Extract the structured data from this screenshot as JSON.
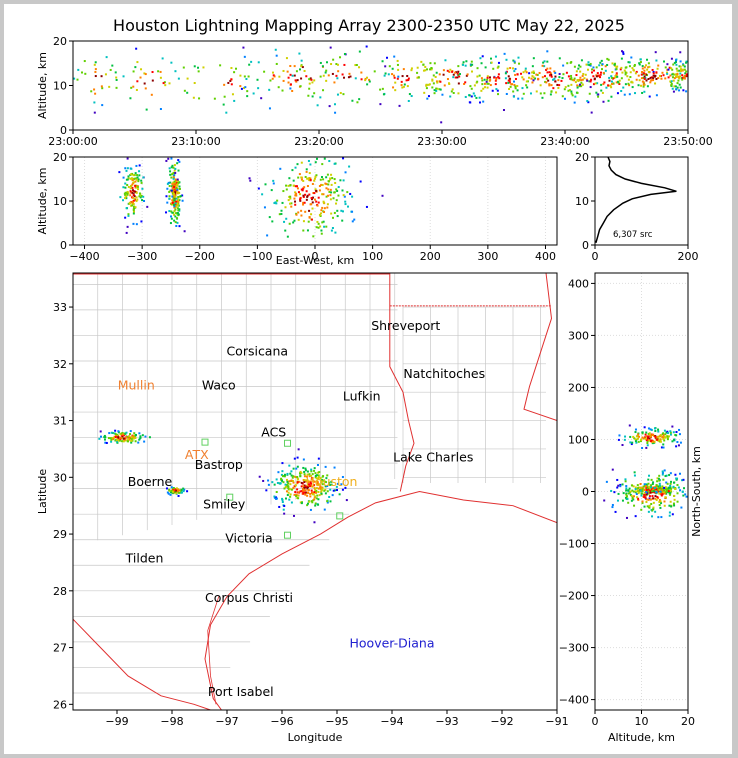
{
  "title": "Houston Lightning Mapping Array 2300-2350 UTC May 22, 2025",
  "chart_data": [
    {
      "id": "altitude-time",
      "type": "scatter",
      "xlabel": "",
      "ylabel": "Altitude, km",
      "x_ticks": [
        "23:00:00",
        "23:10:00",
        "23:20:00",
        "23:30:00",
        "23:40:00",
        "23:50:00"
      ],
      "xlim_minutes": [
        0,
        50
      ],
      "ylim": [
        0,
        20
      ],
      "y_ticks": [
        0,
        10,
        20
      ],
      "clusters": [
        {
          "x": 2,
          "y": 12,
          "sx": 1,
          "sy": 3,
          "n": 30
        },
        {
          "x": 6,
          "y": 11,
          "sx": 1.5,
          "sy": 3,
          "n": 30
        },
        {
          "x": 12,
          "y": 11,
          "sx": 2,
          "sy": 3,
          "n": 40
        },
        {
          "x": 18,
          "y": 12,
          "sx": 2,
          "sy": 3,
          "n": 60
        },
        {
          "x": 22,
          "y": 12,
          "sx": 2,
          "sy": 3,
          "n": 60
        },
        {
          "x": 27,
          "y": 12,
          "sx": 2,
          "sy": 2.5,
          "n": 70
        },
        {
          "x": 31,
          "y": 12,
          "sx": 2,
          "sy": 2.5,
          "n": 90
        },
        {
          "x": 35,
          "y": 12,
          "sx": 2,
          "sy": 2.5,
          "n": 90
        },
        {
          "x": 39,
          "y": 12,
          "sx": 2,
          "sy": 2.5,
          "n": 110
        },
        {
          "x": 43,
          "y": 12,
          "sx": 2,
          "sy": 2.5,
          "n": 130
        },
        {
          "x": 47,
          "y": 12.5,
          "sx": 2,
          "sy": 2,
          "n": 170
        },
        {
          "x": 49.5,
          "y": 12.5,
          "sx": 0.6,
          "sy": 1.5,
          "n": 60
        }
      ]
    },
    {
      "id": "altitude-east-west",
      "type": "scatter",
      "xlabel": "East-West, km",
      "ylabel": "Altitude, km",
      "xlim": [
        -420,
        420
      ],
      "x_ticks": [
        -400,
        -300,
        -200,
        -100,
        0,
        100,
        200,
        300,
        400
      ],
      "ylim": [
        0,
        20
      ],
      "y_ticks": [
        0,
        10,
        20
      ],
      "clusters": [
        {
          "x": -318,
          "y": 12,
          "sx": 9,
          "sy": 3,
          "n": 140
        },
        {
          "x": -245,
          "y": 12,
          "sx": 6,
          "sy": 4,
          "n": 160
        },
        {
          "x": -245,
          "y": 12.5,
          "sx": 2,
          "sy": 1.5,
          "n": 40
        },
        {
          "x": -10,
          "y": 11,
          "sx": 35,
          "sy": 5,
          "n": 260
        }
      ]
    },
    {
      "id": "altitude-histogram",
      "type": "line",
      "xlim": [
        0,
        200
      ],
      "x_ticks": [
        0,
        200
      ],
      "ylim": [
        0,
        20
      ],
      "y_ticks": [
        0,
        10,
        20
      ],
      "annotation": "6,307 src",
      "points": [
        [
          2,
          0.5
        ],
        [
          6,
          2
        ],
        [
          10,
          3.5
        ],
        [
          18,
          5
        ],
        [
          26,
          6.5
        ],
        [
          40,
          8
        ],
        [
          60,
          9.5
        ],
        [
          80,
          10.5
        ],
        [
          120,
          11.5
        ],
        [
          175,
          12.2
        ],
        [
          150,
          13
        ],
        [
          100,
          14
        ],
        [
          65,
          15
        ],
        [
          45,
          16
        ],
        [
          35,
          17
        ],
        [
          30,
          18
        ],
        [
          32,
          19
        ],
        [
          28,
          20
        ]
      ]
    },
    {
      "id": "plan-view-map",
      "type": "scatter",
      "xlabel": "Longitude",
      "ylabel": "Latitude",
      "xlim": [
        -99.8,
        -91
      ],
      "ylim": [
        25.9,
        33.6
      ],
      "x_ticks": [
        -99,
        -98,
        -97,
        -96,
        -95,
        -94,
        -93,
        -92,
        -91
      ],
      "y_ticks": [
        26,
        27,
        28,
        29,
        30,
        31,
        32,
        33
      ],
      "clusters": [
        {
          "x": -98.9,
          "y": 30.72,
          "sx": 0.2,
          "sy": 0.05,
          "n": 120
        },
        {
          "x": -97.95,
          "y": 29.78,
          "sx": 0.08,
          "sy": 0.03,
          "n": 60
        },
        {
          "x": -95.6,
          "y": 29.85,
          "sx": 0.28,
          "sy": 0.2,
          "n": 300
        }
      ],
      "cities": [
        {
          "name": "Shreveport",
          "lon": -93.75,
          "lat": 32.6,
          "color": "#000000"
        },
        {
          "name": "Corsicana",
          "lon": -96.45,
          "lat": 32.15,
          "color": "#000000"
        },
        {
          "name": "Natchitoches",
          "lon": -93.05,
          "lat": 31.75,
          "color": "#000000"
        },
        {
          "name": "Mullin",
          "lon": -98.65,
          "lat": 31.55,
          "color": "#f08030"
        },
        {
          "name": "Waco",
          "lon": -97.15,
          "lat": 31.55,
          "color": "#000000"
        },
        {
          "name": "Lufkin",
          "lon": -94.55,
          "lat": 31.35,
          "color": "#000000"
        },
        {
          "name": "ACS",
          "lon": -96.15,
          "lat": 30.72,
          "color": "#000000"
        },
        {
          "name": "ATX",
          "lon": -97.55,
          "lat": 30.32,
          "color": "#f08030"
        },
        {
          "name": "Lake Charles",
          "lon": -93.25,
          "lat": 30.28,
          "color": "#000000"
        },
        {
          "name": "Bastrop",
          "lon": -97.15,
          "lat": 30.15,
          "color": "#000000"
        },
        {
          "name": "Houston",
          "lon": -95.1,
          "lat": 29.85,
          "color": "#f0b020"
        },
        {
          "name": "Boerne",
          "lon": -98.4,
          "lat": 29.85,
          "color": "#000000"
        },
        {
          "name": "Smiley",
          "lon": -97.05,
          "lat": 29.45,
          "color": "#000000"
        },
        {
          "name": "Victoria",
          "lon": -96.6,
          "lat": 28.85,
          "color": "#000000"
        },
        {
          "name": "Tilden",
          "lon": -98.5,
          "lat": 28.5,
          "color": "#000000"
        },
        {
          "name": "Corpus Christi",
          "lon": -96.6,
          "lat": 27.8,
          "color": "#000000"
        },
        {
          "name": "Hoover-Diana",
          "lon": -94.0,
          "lat": 27.0,
          "color": "#2020d0"
        },
        {
          "name": "Port Isabel",
          "lon": -96.75,
          "lat": 26.15,
          "color": "#000000"
        }
      ],
      "stations": [
        {
          "lon": -97.4,
          "lat": 30.62
        },
        {
          "lon": -95.9,
          "lat": 30.6
        },
        {
          "lon": -96.95,
          "lat": 29.65
        },
        {
          "lon": -94.95,
          "lat": 29.32
        },
        {
          "lon": -95.9,
          "lat": 28.98
        }
      ]
    },
    {
      "id": "north-south-altitude",
      "type": "scatter",
      "xlabel": "Altitude, km",
      "ylabel": "North-South, km",
      "xlim": [
        0,
        20
      ],
      "x_ticks": [
        0,
        10,
        20
      ],
      "ylim": [
        -420,
        420
      ],
      "y_ticks": [
        -400,
        -300,
        -200,
        -100,
        0,
        100,
        200,
        300,
        400
      ],
      "clusters": [
        {
          "x": 12,
          "y": 105,
          "sx": 3,
          "sy": 8,
          "n": 150
        },
        {
          "x": 12,
          "y": 5,
          "sx": 3,
          "sy": 6,
          "n": 160
        },
        {
          "x": 12,
          "y": -2,
          "sx": 4,
          "sy": 20,
          "n": 180
        },
        {
          "x": 12,
          "y": 5,
          "sx": 1.5,
          "sy": 2,
          "n": 40
        }
      ]
    }
  ]
}
